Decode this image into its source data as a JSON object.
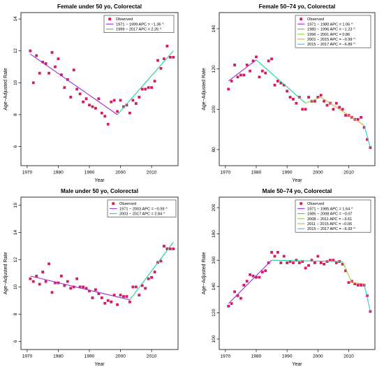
{
  "chart_data": [
    {
      "type": "scatter",
      "title": "Female under 50 yo, Colorectal",
      "xlabel": "Year",
      "ylabel": "Age−Adjusted Rate",
      "xlim": [
        1968,
        2018.5
      ],
      "ylim": [
        4.8,
        14.4
      ],
      "xticks": [
        1970,
        1980,
        1990,
        2000,
        2010
      ],
      "yticks": [
        6,
        8,
        10,
        12,
        14
      ],
      "legend_position": "top-right",
      "observed_label": "Observed",
      "observed": [
        [
          1971,
          12.0
        ],
        [
          1972,
          10.0
        ],
        [
          1973,
          11.7
        ],
        [
          1974,
          10.6
        ],
        [
          1975,
          11.3
        ],
        [
          1976,
          11.2
        ],
        [
          1977,
          10.6
        ],
        [
          1978,
          11.9
        ],
        [
          1979,
          11.0
        ],
        [
          1980,
          11.5
        ],
        [
          1981,
          10.5
        ],
        [
          1982,
          9.7
        ],
        [
          1983,
          10.2
        ],
        [
          1984,
          9.1
        ],
        [
          1985,
          10.8
        ],
        [
          1986,
          9.6
        ],
        [
          1987,
          9.3
        ],
        [
          1988,
          8.8
        ],
        [
          1989,
          9.0
        ],
        [
          1990,
          8.6
        ],
        [
          1991,
          8.5
        ],
        [
          1992,
          8.4
        ],
        [
          1993,
          9.0
        ],
        [
          1994,
          8.1
        ],
        [
          1995,
          7.9
        ],
        [
          1996,
          7.4
        ],
        [
          1997,
          8.8
        ],
        [
          1998,
          8.9
        ],
        [
          1999,
          8.2
        ],
        [
          2000,
          8.9
        ],
        [
          2001,
          8.5
        ],
        [
          2002,
          8.6
        ],
        [
          2003,
          8.1
        ],
        [
          2004,
          8.9
        ],
        [
          2005,
          8.7
        ],
        [
          2006,
          9.1
        ],
        [
          2007,
          9.6
        ],
        [
          2008,
          9.6
        ],
        [
          2009,
          9.7
        ],
        [
          2010,
          9.7
        ],
        [
          2011,
          10.1
        ],
        [
          2012,
          11.4
        ],
        [
          2013,
          10.9
        ],
        [
          2014,
          11.5
        ],
        [
          2015,
          12.3
        ],
        [
          2016,
          11.6
        ],
        [
          2017,
          11.6
        ]
      ],
      "segments": [
        {
          "label": "1971 − 1999 APC = −1.36 ^",
          "color": "#9B30D9",
          "points": [
            [
              1971,
              11.8
            ],
            [
              1999,
              8.0
            ]
          ]
        },
        {
          "label": "1999 − 2017 APC = 2.26 ^",
          "color": "#19D889",
          "points": [
            [
              1999,
              8.0
            ],
            [
              2017,
              12.0
            ]
          ]
        }
      ]
    },
    {
      "type": "scatter",
      "title": "Female 50–74 yo, Colorectal",
      "xlabel": "Year",
      "ylabel": "Age−Adjusted Rate",
      "xlim": [
        1968,
        2018.5
      ],
      "ylim": [
        72,
        148
      ],
      "xticks": [
        1970,
        1980,
        1990,
        2000,
        2010
      ],
      "yticks": [
        80,
        100,
        120,
        140
      ],
      "legend_position": "top-right",
      "observed_label": "Observed",
      "observed": [
        [
          1971,
          110
        ],
        [
          1972,
          114
        ],
        [
          1973,
          122
        ],
        [
          1974,
          116
        ],
        [
          1975,
          117
        ],
        [
          1976,
          117
        ],
        [
          1977,
          122
        ],
        [
          1978,
          119
        ],
        [
          1979,
          124
        ],
        [
          1980,
          126
        ],
        [
          1981,
          116
        ],
        [
          1982,
          119
        ],
        [
          1983,
          118
        ],
        [
          1984,
          124
        ],
        [
          1985,
          125
        ],
        [
          1986,
          112
        ],
        [
          1987,
          114
        ],
        [
          1988,
          113
        ],
        [
          1989,
          112
        ],
        [
          1990,
          109
        ],
        [
          1991,
          106
        ],
        [
          1992,
          105
        ],
        [
          1993,
          103
        ],
        [
          1994,
          106
        ],
        [
          1995,
          100
        ],
        [
          1996,
          100
        ],
        [
          1997,
          106
        ],
        [
          1998,
          104
        ],
        [
          1999,
          104
        ],
        [
          2000,
          106
        ],
        [
          2001,
          107
        ],
        [
          2002,
          104
        ],
        [
          2003,
          102
        ],
        [
          2004,
          103
        ],
        [
          2005,
          100
        ],
        [
          2006,
          103
        ],
        [
          2007,
          101
        ],
        [
          2008,
          100
        ],
        [
          2009,
          97
        ],
        [
          2010,
          97
        ],
        [
          2011,
          96
        ],
        [
          2012,
          95
        ],
        [
          2013,
          95
        ],
        [
          2014,
          96
        ],
        [
          2015,
          91
        ],
        [
          2016,
          85
        ],
        [
          2017,
          81
        ]
      ],
      "segments": [
        {
          "label": "1971 − 1980 APC = 1.06 ^",
          "color": "#9B30D9",
          "points": [
            [
              1971,
              114
            ],
            [
              1980,
              124.5
            ]
          ]
        },
        {
          "label": "1980 − 1996 APC = −1.23 ^",
          "color": "#19D889",
          "points": [
            [
              1980,
              124.5
            ],
            [
              1996,
              103
            ]
          ]
        },
        {
          "label": "1996 − 2001 APC = 0.86",
          "color": "#8FD635",
          "points": [
            [
              1996,
              103
            ],
            [
              2001,
              106
            ]
          ]
        },
        {
          "label": "2001 − 2015 APC = −0.99 ^",
          "color": "#D4A84E",
          "points": [
            [
              2001,
              106
            ],
            [
              2015,
              92
            ]
          ]
        },
        {
          "label": "2015 − 2017 APC = −6.89 ^",
          "color": "#32C6E0",
          "points": [
            [
              2015,
              92
            ],
            [
              2017,
              81
            ]
          ]
        }
      ]
    },
    {
      "type": "scatter",
      "title": "Male under 50 yo, Colorectal",
      "xlabel": "Year",
      "ylabel": "Age−Adjusted Rate",
      "xlim": [
        1968,
        2018.5
      ],
      "ylim": [
        5.4,
        16.6
      ],
      "xticks": [
        1970,
        1980,
        1990,
        2000,
        2010
      ],
      "yticks": [
        6,
        8,
        10,
        12,
        14,
        16
      ],
      "legend_position": "top-left",
      "observed_label": "Observed",
      "observed": [
        [
          1971,
          10.6
        ],
        [
          1972,
          10.4
        ],
        [
          1973,
          10.8
        ],
        [
          1974,
          10.2
        ],
        [
          1975,
          11.1
        ],
        [
          1976,
          10.4
        ],
        [
          1977,
          11.7
        ],
        [
          1978,
          9.6
        ],
        [
          1979,
          10.3
        ],
        [
          1980,
          10.3
        ],
        [
          1981,
          10.8
        ],
        [
          1982,
          10.1
        ],
        [
          1983,
          10.4
        ],
        [
          1984,
          9.9
        ],
        [
          1985,
          10.0
        ],
        [
          1986,
          10.6
        ],
        [
          1987,
          10.0
        ],
        [
          1988,
          10.0
        ],
        [
          1989,
          9.9
        ],
        [
          1990,
          9.7
        ],
        [
          1991,
          9.2
        ],
        [
          1992,
          9.8
        ],
        [
          1993,
          9.5
        ],
        [
          1994,
          9.2
        ],
        [
          1995,
          8.8
        ],
        [
          1996,
          9.0
        ],
        [
          1997,
          8.9
        ],
        [
          1998,
          9.4
        ],
        [
          1999,
          8.7
        ],
        [
          2000,
          9.4
        ],
        [
          2001,
          9.3
        ],
        [
          2002,
          9.3
        ],
        [
          2003,
          8.9
        ],
        [
          2004,
          10.0
        ],
        [
          2005,
          10.0
        ],
        [
          2006,
          9.4
        ],
        [
          2007,
          10.1
        ],
        [
          2008,
          9.9
        ],
        [
          2009,
          10.6
        ],
        [
          2010,
          10.7
        ],
        [
          2011,
          11.1
        ],
        [
          2012,
          11.8
        ],
        [
          2013,
          11.9
        ],
        [
          2014,
          13.0
        ],
        [
          2015,
          12.8
        ],
        [
          2016,
          12.8
        ],
        [
          2017,
          12.8
        ]
      ],
      "segments": [
        {
          "label": "1971 − 2003 APC = −0.59 ^",
          "color": "#9B30D9",
          "points": [
            [
              1971,
              10.8
            ],
            [
              2003,
              9.05
            ]
          ]
        },
        {
          "label": "2003 − 2017 APC = 2.84 ^",
          "color": "#19D889",
          "points": [
            [
              2003,
              9.05
            ],
            [
              2017,
              13.3
            ]
          ]
        }
      ]
    },
    {
      "type": "scatter",
      "title": "Male 50–74 yo, Colorectal",
      "xlabel": "Year",
      "ylabel": "Age−Adjusted Rate",
      "xlim": [
        1968,
        2018.5
      ],
      "ylim": [
        92,
        208
      ],
      "xticks": [
        1970,
        1980,
        1990,
        2000,
        2010
      ],
      "yticks": [
        100,
        120,
        140,
        160,
        180,
        200
      ],
      "legend_position": "top-right",
      "observed_label": "Observed",
      "observed": [
        [
          1971,
          125
        ],
        [
          1972,
          127
        ],
        [
          1973,
          136
        ],
        [
          1974,
          133
        ],
        [
          1975,
          131
        ],
        [
          1976,
          141
        ],
        [
          1977,
          144
        ],
        [
          1978,
          149
        ],
        [
          1979,
          148
        ],
        [
          1980,
          147
        ],
        [
          1981,
          147
        ],
        [
          1982,
          151
        ],
        [
          1983,
          152
        ],
        [
          1984,
          158
        ],
        [
          1985,
          166
        ],
        [
          1986,
          163
        ],
        [
          1987,
          166
        ],
        [
          1988,
          158
        ],
        [
          1989,
          163
        ],
        [
          1990,
          158
        ],
        [
          1991,
          159
        ],
        [
          1992,
          158
        ],
        [
          1993,
          160
        ],
        [
          1994,
          158
        ],
        [
          1995,
          159
        ],
        [
          1996,
          154
        ],
        [
          1997,
          156
        ],
        [
          1998,
          160
        ],
        [
          1999,
          158
        ],
        [
          2000,
          163
        ],
        [
          2001,
          158
        ],
        [
          2002,
          157
        ],
        [
          2003,
          159
        ],
        [
          2004,
          160
        ],
        [
          2005,
          160
        ],
        [
          2006,
          158
        ],
        [
          2007,
          159
        ],
        [
          2008,
          157
        ],
        [
          2009,
          152
        ],
        [
          2010,
          143
        ],
        [
          2011,
          144
        ],
        [
          2012,
          142
        ],
        [
          2013,
          141
        ],
        [
          2014,
          141
        ],
        [
          2015,
          141
        ],
        [
          2016,
          133
        ],
        [
          2017,
          121
        ]
      ],
      "segments": [
        {
          "label": "1971 − 1985 APC = 1.64 ^",
          "color": "#9B30D9",
          "points": [
            [
              1971,
              127
            ],
            [
              1985,
              160
            ]
          ]
        },
        {
          "label": "1985 − 2008 APC = −0.07",
          "color": "#19D889",
          "points": [
            [
              1985,
              160
            ],
            [
              2008,
              159
            ]
          ]
        },
        {
          "label": "2008 − 2011 APC = −3.61",
          "color": "#8FD635",
          "points": [
            [
              2008,
              159
            ],
            [
              2011,
              143
            ]
          ]
        },
        {
          "label": "2011 − 2015 APC = −0.06",
          "color": "#D4A84E",
          "points": [
            [
              2011,
              143
            ],
            [
              2015,
              142
            ]
          ]
        },
        {
          "label": "2015 − 2017 APC = −6.93 ^",
          "color": "#32C6E0",
          "points": [
            [
              2015,
              142
            ],
            [
              2017,
              121
            ]
          ]
        }
      ]
    }
  ],
  "colors": {
    "observed": "#D81B60",
    "axis": "#000000"
  }
}
